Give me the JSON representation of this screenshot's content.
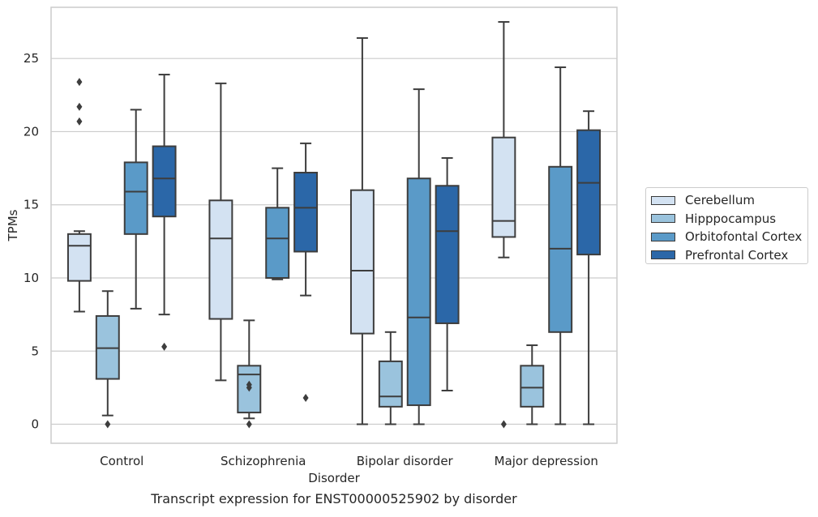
{
  "chart_data": {
    "type": "box",
    "ylabel": "TPMs",
    "xlabel": "Disorder",
    "caption": "Transcript expression for ENST00000525902 by disorder",
    "ylim": [
      -1.3,
      28.5
    ],
    "yticks": [
      0,
      5,
      10,
      15,
      20,
      25
    ],
    "grid": "horizontal",
    "legend_placement": "right",
    "categories": [
      "Control",
      "Schizophrenia",
      "Bipolar disorder",
      "Major depression"
    ],
    "series": [
      {
        "name": "Cerebellum",
        "color": "#d3e2f2",
        "boxes": [
          {
            "min": 7.7,
            "q1": 9.8,
            "median": 12.2,
            "q3": 13.0,
            "max": 13.2,
            "outliers": [
              20.7,
              21.7,
              23.4
            ]
          },
          {
            "min": 3.0,
            "q1": 7.2,
            "median": 12.7,
            "q3": 15.3,
            "max": 23.3,
            "outliers": []
          },
          {
            "min": 0.0,
            "q1": 6.2,
            "median": 10.5,
            "q3": 16.0,
            "max": 26.4,
            "outliers": []
          },
          {
            "min": 11.4,
            "q1": 12.8,
            "median": 13.9,
            "q3": 19.6,
            "max": 27.5,
            "outliers": [
              0.0
            ]
          }
        ]
      },
      {
        "name": "Hipppocampus",
        "color": "#9ac3dd",
        "boxes": [
          {
            "min": 0.6,
            "q1": 3.1,
            "median": 5.2,
            "q3": 7.4,
            "max": 9.1,
            "outliers": [
              0.0
            ]
          },
          {
            "min": 0.4,
            "q1": 0.8,
            "median": 3.4,
            "q3": 4.0,
            "max": 7.1,
            "outliers": [
              0.0,
              2.5,
              2.7
            ]
          },
          {
            "min": 0.0,
            "q1": 1.2,
            "median": 1.9,
            "q3": 4.3,
            "max": 6.3,
            "outliers": []
          },
          {
            "min": 0.0,
            "q1": 1.2,
            "median": 2.5,
            "q3": 4.0,
            "max": 5.4,
            "outliers": []
          }
        ]
      },
      {
        "name": "Orbitofontal Cortex",
        "color": "#5a9ac8",
        "boxes": [
          {
            "min": 7.9,
            "q1": 13.0,
            "median": 15.9,
            "q3": 17.9,
            "max": 21.5,
            "outliers": []
          },
          {
            "min": 9.9,
            "q1": 10.0,
            "median": 12.7,
            "q3": 14.8,
            "max": 17.5,
            "outliers": []
          },
          {
            "min": 0.0,
            "q1": 1.3,
            "median": 7.3,
            "q3": 16.8,
            "max": 22.9,
            "outliers": []
          },
          {
            "min": 0.0,
            "q1": 6.3,
            "median": 12.0,
            "q3": 17.6,
            "max": 24.4,
            "outliers": []
          }
        ]
      },
      {
        "name": "Prefrontal Cortex",
        "color": "#2b67a8",
        "boxes": [
          {
            "min": 7.5,
            "q1": 14.2,
            "median": 16.8,
            "q3": 19.0,
            "max": 23.9,
            "outliers": [
              5.3
            ]
          },
          {
            "min": 8.8,
            "q1": 11.8,
            "median": 14.8,
            "q3": 17.2,
            "max": 19.2,
            "outliers": [
              1.8
            ]
          },
          {
            "min": 2.3,
            "q1": 6.9,
            "median": 13.2,
            "q3": 16.3,
            "max": 18.2,
            "outliers": []
          },
          {
            "min": 0.0,
            "q1": 11.6,
            "median": 16.5,
            "q3": 20.1,
            "max": 21.4,
            "outliers": []
          }
        ]
      }
    ]
  }
}
